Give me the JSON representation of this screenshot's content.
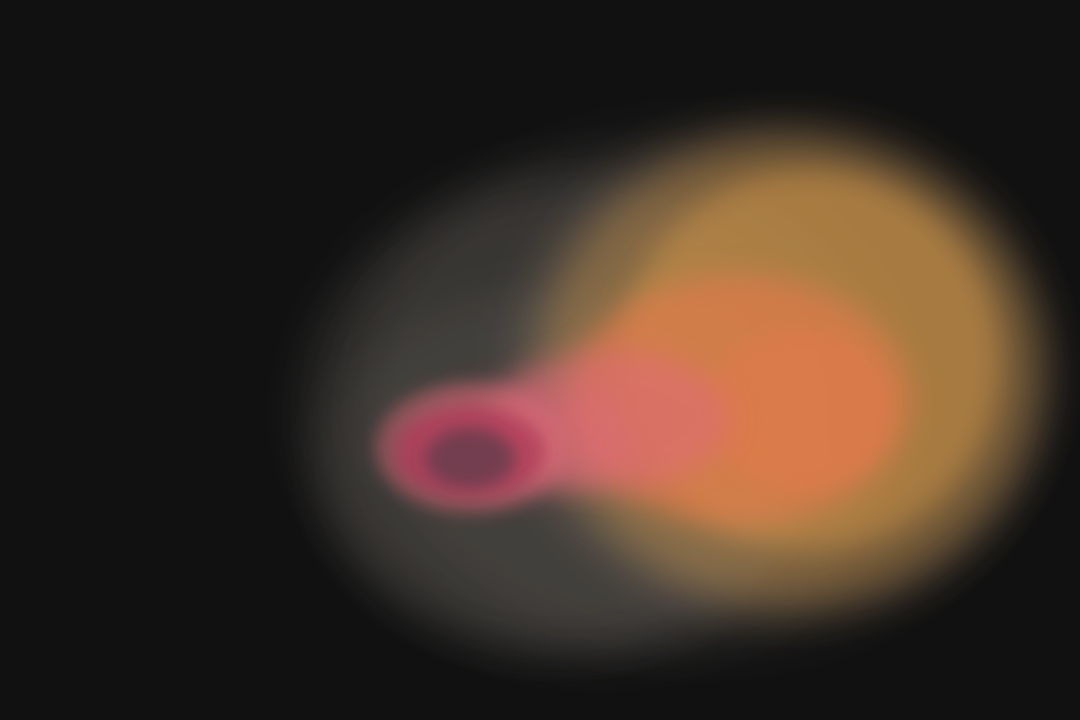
{
  "artwork": {
    "background": "#111111",
    "palette": {
      "halo": "#9a8f8d",
      "glow": "#e0a04a",
      "core": "#e07a4a",
      "pink": "#e06a7a",
      "crimson": "#b03a5a",
      "center": "#5a3a4a"
    }
  }
}
